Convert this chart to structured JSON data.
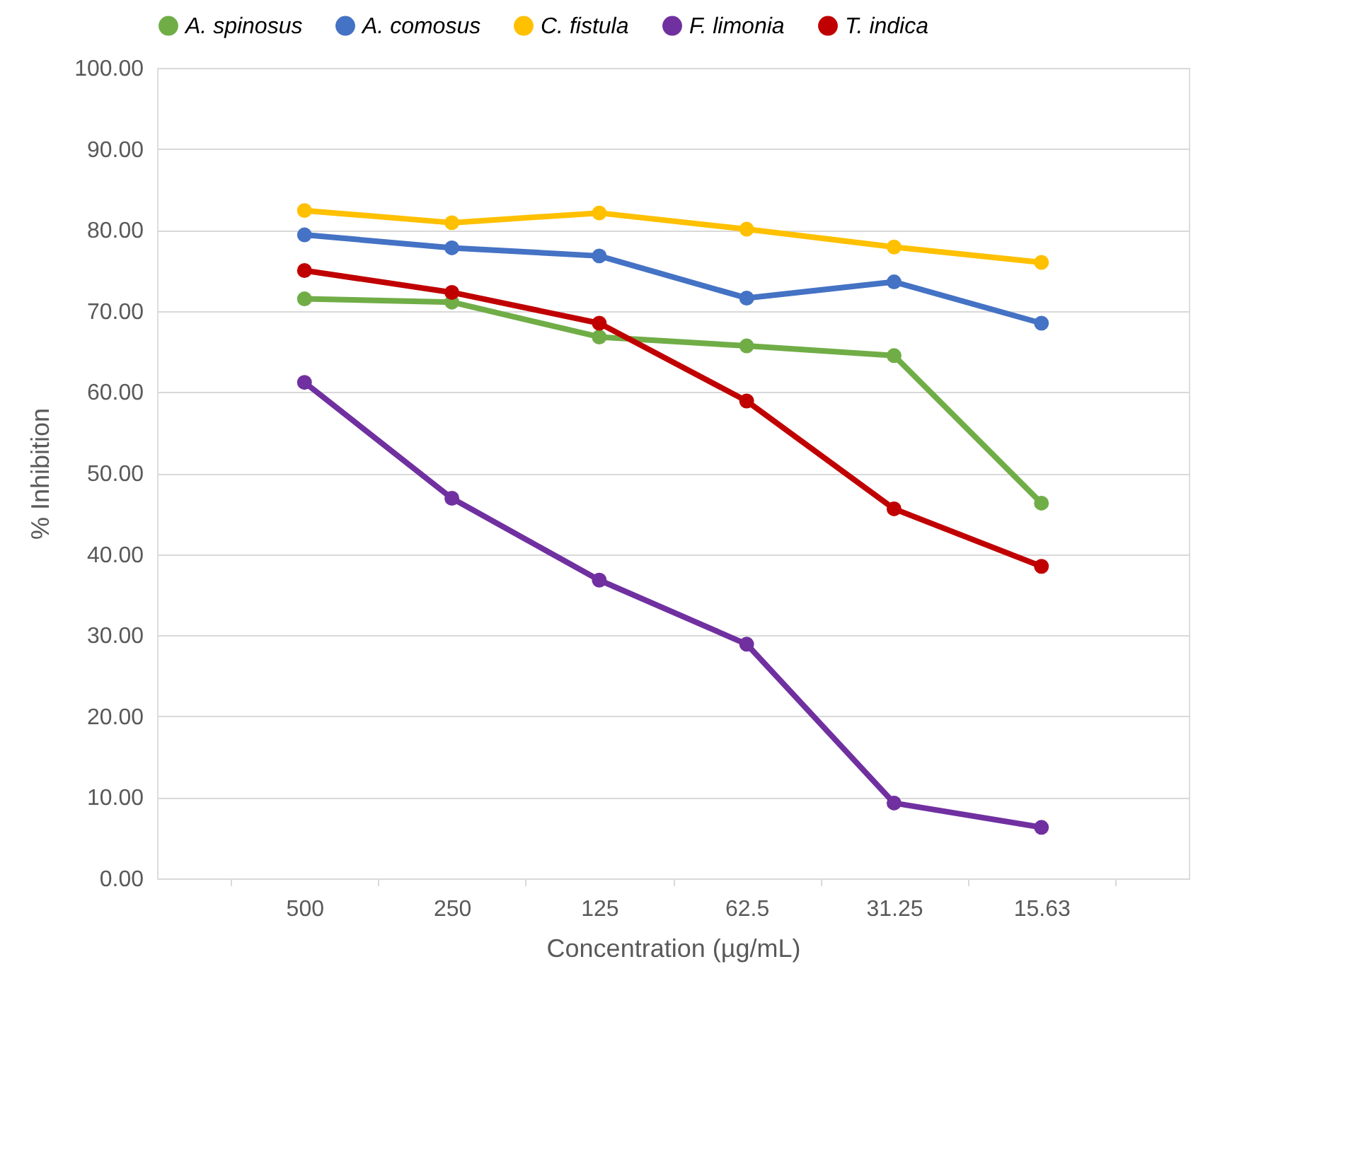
{
  "chart_data": {
    "type": "line",
    "xlabel": "Concentration (µg/mL)",
    "ylabel": "% Inhibition",
    "categories": [
      "500",
      "250",
      "125",
      "62.5",
      "31.25",
      "15.63"
    ],
    "series": [
      {
        "name": "A. spinosus",
        "color": "#70ad47",
        "values": [
          71.5,
          71.1,
          66.8,
          65.7,
          64.5,
          46.3
        ]
      },
      {
        "name": "A. comosus",
        "color": "#4472c4",
        "values": [
          79.4,
          77.8,
          76.8,
          71.6,
          73.6,
          68.5
        ]
      },
      {
        "name": "C. fistula",
        "color": "#ffc000",
        "values": [
          82.4,
          80.9,
          82.1,
          80.1,
          77.9,
          76.0
        ]
      },
      {
        "name": "F. limonia",
        "color": "#7030a0",
        "values": [
          61.2,
          46.9,
          36.8,
          28.9,
          9.3,
          6.3
        ]
      },
      {
        "name": "T. indica",
        "color": "#c00000",
        "values": [
          75.0,
          72.3,
          68.5,
          58.9,
          45.6,
          38.5
        ]
      }
    ],
    "ylim": [
      0,
      100
    ],
    "yticks": [
      {
        "value": 0,
        "label": "0.00"
      },
      {
        "value": 10,
        "label": "10.00"
      },
      {
        "value": 20,
        "label": "20.00"
      },
      {
        "value": 30,
        "label": "30.00"
      },
      {
        "value": 40,
        "label": "40.00"
      },
      {
        "value": 50,
        "label": "50.00"
      },
      {
        "value": 60,
        "label": "60.00"
      },
      {
        "value": 70,
        "label": "70.00"
      },
      {
        "value": 80,
        "label": "80.00"
      },
      {
        "value": 90,
        "label": "90.00"
      },
      {
        "value": 100,
        "label": "100.00"
      }
    ],
    "grid": "y",
    "legend": "top",
    "marker": "circle",
    "line_style": "solid"
  }
}
